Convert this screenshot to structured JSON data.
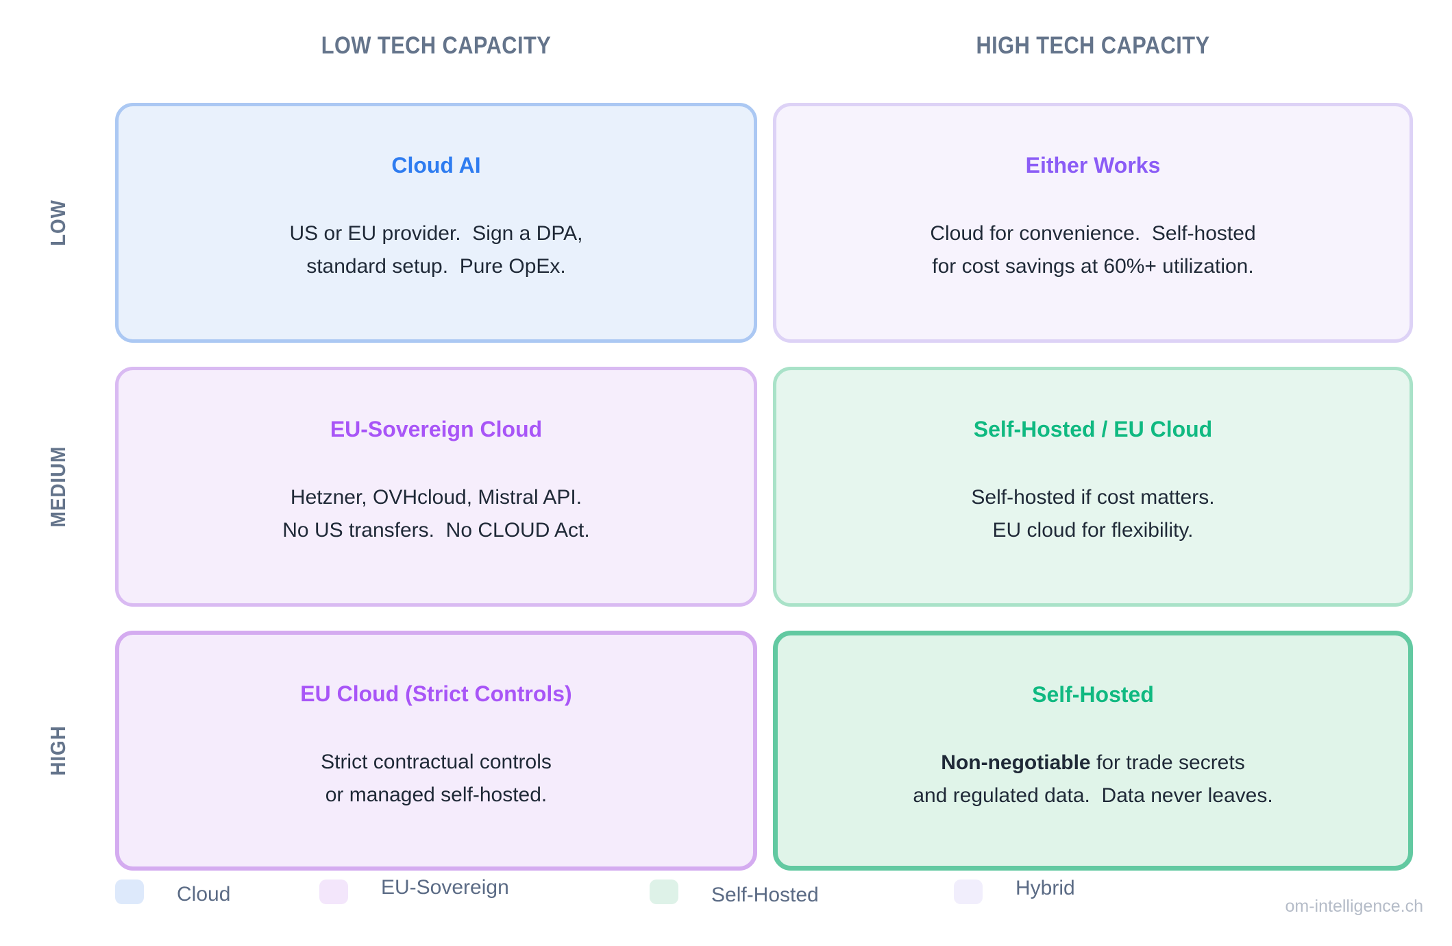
{
  "matrix": {
    "column_headers": [
      "LOW TECH CAPACITY",
      "HIGH TECH CAPACITY"
    ],
    "row_labels": [
      "LOW",
      "MEDIUM",
      "HIGH"
    ],
    "cells": [
      {
        "row": "LOW",
        "column": "LOW TECH CAPACITY",
        "category": "Cloud",
        "title": "Cloud AI",
        "title_color": "#2e7cf0",
        "body": "US or EU provider.  Sign a DPA,\nstandard setup.  Pure OpEx."
      },
      {
        "row": "LOW",
        "column": "HIGH TECH CAPACITY",
        "category": "Hybrid",
        "title": "Either Works",
        "title_color": "#8b5cf6",
        "body": "Cloud for convenience.  Self-hosted\nfor cost savings at 60%+ utilization."
      },
      {
        "row": "MEDIUM",
        "column": "LOW TECH CAPACITY",
        "category": "EU-Sovereign",
        "title": "EU-Sovereign Cloud",
        "title_color": "#a855f7",
        "body": "Hetzner, OVHcloud, Mistral API.\nNo US transfers.  No CLOUD Act."
      },
      {
        "row": "MEDIUM",
        "column": "HIGH TECH CAPACITY",
        "category": "Self-Hosted",
        "title": "Self-Hosted / EU Cloud",
        "title_color": "#10b981",
        "body": "Self-hosted if cost matters.\nEU cloud for flexibility."
      },
      {
        "row": "HIGH",
        "column": "LOW TECH CAPACITY",
        "category": "EU-Sovereign",
        "title": "EU Cloud (Strict Controls)",
        "title_color": "#a855f7",
        "body": "Strict contractual controls\nor managed self-hosted."
      },
      {
        "row": "HIGH",
        "column": "HIGH TECH CAPACITY",
        "category": "Self-Hosted",
        "title": "Self-Hosted",
        "title_color": "#10b981",
        "body_bold": "Non-negotiable",
        "body_rest": " for trade secrets\nand regulated data.  Data never leaves."
      }
    ]
  },
  "legend": {
    "items": [
      {
        "label": "Cloud",
        "swatch_color": "#dde9fb"
      },
      {
        "label": "EU-Sovereign",
        "swatch_color": "#f3e6fb"
      },
      {
        "label": "Self-Hosted",
        "swatch_color": "#def2e8"
      },
      {
        "label": "Hybrid",
        "swatch_color": "#f1eefc"
      }
    ]
  },
  "watermark": "om-intelligence.ch",
  "colors": {
    "header_text": "#64748b",
    "body_text": "#1f2937",
    "legend_text": "#5b6b85",
    "watermark_text": "#b5bcc8",
    "cell_cloud_bg": "#e9f1fc",
    "cell_cloud_border": "#abc8f3",
    "cell_hybrid_bg": "#f7f3fd",
    "cell_hybrid_border": "#ddd2f6",
    "cell_eu_bg": "#f6eefc",
    "cell_eu_border": "#d9baf2",
    "cell_mint_bg": "#e6f6ee",
    "cell_mint_border": "#a9e2c8",
    "cell_eu_strong_border": "#d4abf0",
    "cell_green_strong_border": "#62c9a1"
  }
}
